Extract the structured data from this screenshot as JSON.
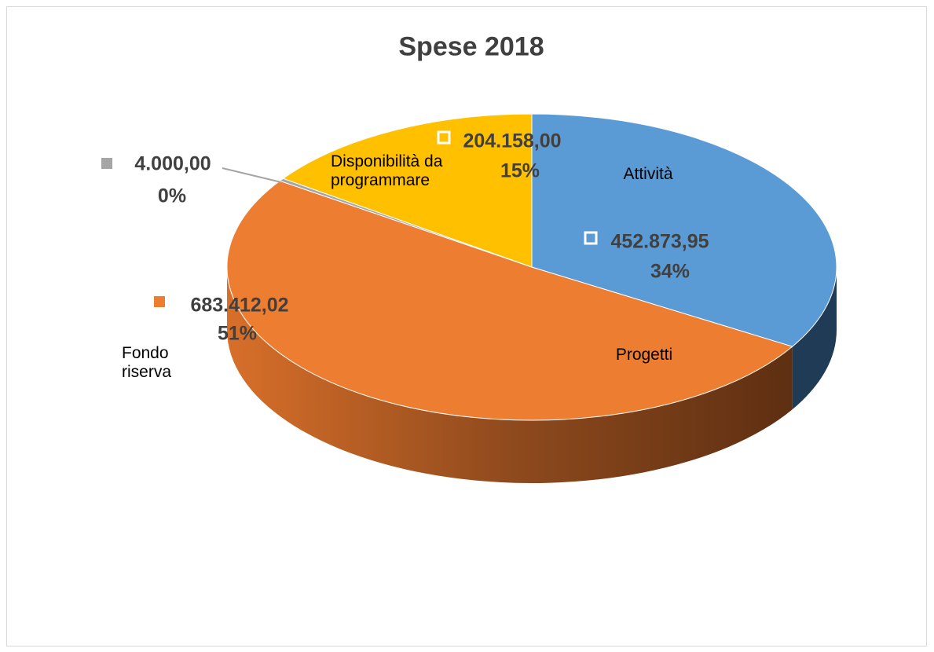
{
  "chart_data": {
    "type": "pie",
    "title": "Spese 2018",
    "categories": [
      "Attività",
      "Progetti",
      "Fondo riserva",
      "Disponibilità da programmare"
    ],
    "values": [
      452873.95,
      683412.02,
      4000,
      204158
    ],
    "value_labels": [
      "452.873,95",
      "683.412,02",
      "4.000,00",
      "204.158,00"
    ],
    "percent_labels": [
      "34%",
      "51%",
      "0%",
      "15%"
    ],
    "colors": [
      "#5b9bd5",
      "#ed7d31",
      "#a5a5a5",
      "#ffc000"
    ]
  }
}
